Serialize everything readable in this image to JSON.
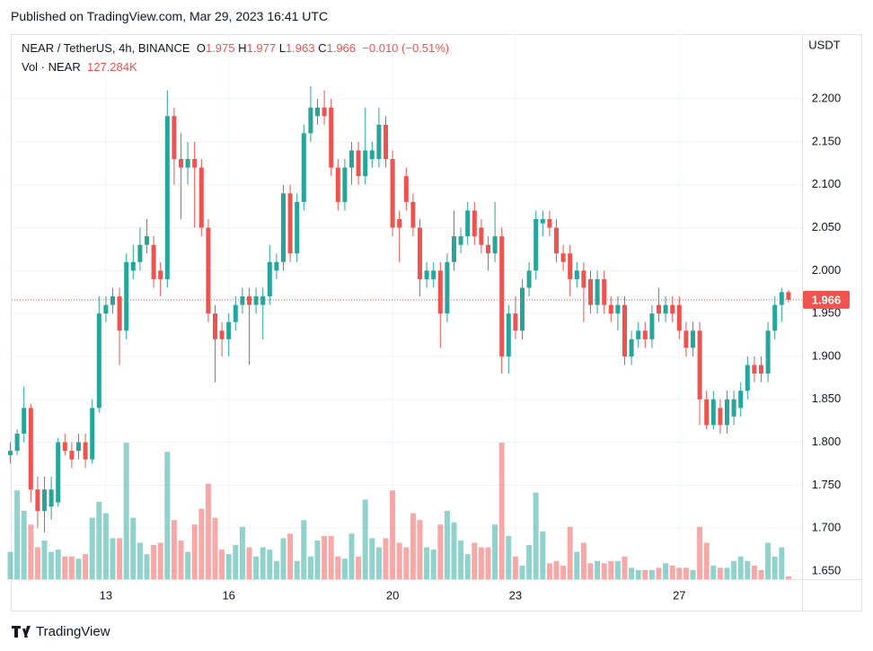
{
  "chart_data": {
    "type": "candlestick",
    "published": "Published on TradingView.com, Mar 29, 2023 16:41 UTC",
    "symbol": "NEAR / TetherUS, 4h, BINANCE",
    "ohlc": {
      "o_label": "O",
      "open": 1.975,
      "h_label": "H",
      "high": 1.977,
      "l_label": "L",
      "low": 1.963,
      "c_label": "C",
      "close": 1.966,
      "change": {
        "value": -0.01,
        "label": "−0.010 (−0.51%)"
      }
    },
    "volume_label": "Vol · NEAR",
    "volume_value": {
      "value": 127.284,
      "label": "127.284K"
    },
    "currency": "USDT",
    "brand": "TradingView",
    "up_color": "#26a69a",
    "down_color": "#ef5350",
    "grid": true,
    "ylim": [
      1.6405,
      2.2755
    ],
    "yticks": [
      {
        "value": 1.65,
        "label": "1.650"
      },
      {
        "value": 1.7,
        "label": "1.700"
      },
      {
        "value": 1.75,
        "label": "1.750"
      },
      {
        "value": 1.8,
        "label": "1.800"
      },
      {
        "value": 1.85,
        "label": "1.850"
      },
      {
        "value": 1.9,
        "label": "1.900"
      },
      {
        "value": 1.95,
        "label": "1.950"
      },
      {
        "value": 2.0,
        "label": "2.000"
      },
      {
        "value": 2.05,
        "label": "2.050"
      },
      {
        "value": 2.1,
        "label": "2.100"
      },
      {
        "value": 2.15,
        "label": "2.150"
      },
      {
        "value": 2.2,
        "label": "2.200"
      }
    ],
    "xticks": [
      {
        "value": 14,
        "label": "13"
      },
      {
        "value": 32,
        "label": "16"
      },
      {
        "value": 56,
        "label": "20"
      },
      {
        "value": 74,
        "label": "23"
      },
      {
        "value": 98,
        "label": "27"
      }
    ],
    "candles": [
      [
        1.785,
        1.8,
        1.775,
        1.79
      ],
      [
        1.79,
        1.815,
        1.785,
        1.81
      ],
      [
        1.81,
        1.865,
        1.8,
        1.84
      ],
      [
        1.84,
        1.845,
        1.73,
        1.745
      ],
      [
        1.745,
        1.76,
        1.7,
        1.72
      ],
      [
        1.72,
        1.76,
        1.695,
        1.745
      ],
      [
        1.725,
        1.76,
        1.71,
        1.745
      ],
      [
        1.73,
        1.805,
        1.725,
        1.8
      ],
      [
        1.8,
        1.81,
        1.785,
        1.79
      ],
      [
        1.79,
        1.8,
        1.77,
        1.78
      ],
      [
        1.79,
        1.81,
        1.78,
        1.8
      ],
      [
        1.8,
        1.81,
        1.77,
        1.78
      ],
      [
        1.78,
        1.85,
        1.775,
        1.84
      ],
      [
        1.84,
        1.97,
        1.835,
        1.95
      ],
      [
        1.95,
        1.97,
        1.94,
        1.96
      ],
      [
        1.96,
        1.98,
        1.95,
        1.97
      ],
      [
        1.97,
        1.98,
        1.89,
        1.93
      ],
      [
        1.93,
        2.02,
        1.92,
        2.01
      ],
      [
        2.0,
        2.03,
        1.99,
        2.01
      ],
      [
        2.01,
        2.05,
        2.0,
        2.03
      ],
      [
        2.03,
        2.06,
        2.02,
        2.04
      ],
      [
        2.03,
        2.04,
        1.98,
        1.99
      ],
      [
        2.0,
        2.01,
        1.97,
        1.99
      ],
      [
        1.99,
        2.21,
        1.98,
        2.18
      ],
      [
        2.18,
        2.19,
        2.1,
        2.13
      ],
      [
        2.13,
        2.16,
        2.06,
        2.12
      ],
      [
        2.12,
        2.15,
        2.1,
        2.13
      ],
      [
        2.13,
        2.15,
        2.05,
        2.12
      ],
      [
        2.12,
        2.13,
        2.04,
        2.05
      ],
      [
        2.05,
        2.06,
        1.94,
        1.95
      ],
      [
        1.95,
        1.96,
        1.87,
        1.92
      ],
      [
        1.93,
        1.94,
        1.9,
        1.92
      ],
      [
        1.92,
        1.95,
        1.9,
        1.94
      ],
      [
        1.94,
        1.97,
        1.93,
        1.96
      ],
      [
        1.96,
        1.98,
        1.95,
        1.97
      ],
      [
        1.97,
        1.98,
        1.89,
        1.96
      ],
      [
        1.96,
        1.98,
        1.95,
        1.97
      ],
      [
        1.96,
        1.98,
        1.92,
        1.97
      ],
      [
        1.97,
        2.03,
        1.96,
        2.01
      ],
      [
        2.0,
        2.02,
        1.99,
        2.01
      ],
      [
        2.01,
        2.1,
        2.0,
        2.09
      ],
      [
        2.09,
        2.1,
        2.01,
        2.02
      ],
      [
        2.02,
        2.09,
        2.01,
        2.08
      ],
      [
        2.08,
        2.17,
        2.07,
        2.16
      ],
      [
        2.16,
        2.215,
        2.15,
        2.19
      ],
      [
        2.18,
        2.2,
        2.17,
        2.19
      ],
      [
        2.19,
        2.21,
        2.17,
        2.18
      ],
      [
        2.19,
        2.2,
        2.11,
        2.12
      ],
      [
        2.12,
        2.13,
        2.07,
        2.08
      ],
      [
        2.08,
        2.13,
        2.07,
        2.12
      ],
      [
        2.12,
        2.15,
        2.1,
        2.14
      ],
      [
        2.14,
        2.15,
        2.1,
        2.11
      ],
      [
        2.11,
        2.19,
        2.1,
        2.14
      ],
      [
        2.13,
        2.15,
        2.12,
        2.14
      ],
      [
        2.13,
        2.19,
        2.12,
        2.17
      ],
      [
        2.17,
        2.18,
        2.12,
        2.13
      ],
      [
        2.13,
        2.14,
        2.04,
        2.05
      ],
      [
        2.06,
        2.07,
        2.01,
        2.05
      ],
      [
        2.11,
        2.12,
        2.07,
        2.08
      ],
      [
        2.08,
        2.09,
        2.04,
        2.05
      ],
      [
        2.05,
        2.06,
        1.97,
        1.99
      ],
      [
        1.99,
        2.01,
        1.98,
        2.0
      ],
      [
        1.99,
        2.01,
        1.98,
        2.0
      ],
      [
        2.0,
        2.01,
        1.91,
        1.95
      ],
      [
        1.95,
        2.02,
        1.94,
        2.01
      ],
      [
        2.01,
        2.07,
        2.0,
        2.04
      ],
      [
        2.03,
        2.05,
        2.02,
        2.04
      ],
      [
        2.04,
        2.08,
        2.03,
        2.07
      ],
      [
        2.07,
        2.08,
        2.03,
        2.04
      ],
      [
        2.05,
        2.06,
        2.02,
        2.03
      ],
      [
        2.03,
        2.04,
        2.0,
        2.02
      ],
      [
        2.02,
        2.08,
        2.01,
        2.04
      ],
      [
        2.04,
        2.05,
        1.88,
        1.9
      ],
      [
        1.9,
        1.96,
        1.88,
        1.95
      ],
      [
        1.95,
        1.97,
        1.92,
        1.93
      ],
      [
        1.93,
        1.99,
        1.92,
        1.98
      ],
      [
        1.98,
        2.01,
        1.97,
        2.0
      ],
      [
        2.0,
        2.07,
        1.99,
        2.06
      ],
      [
        2.055,
        2.07,
        2.04,
        2.06
      ],
      [
        2.06,
        2.07,
        2.04,
        2.05
      ],
      [
        2.05,
        2.06,
        2.01,
        2.02
      ],
      [
        2.02,
        2.03,
        2.0,
        2.01
      ],
      [
        2.02,
        2.03,
        1.97,
        1.99
      ],
      [
        1.99,
        2.01,
        1.98,
        2.0
      ],
      [
        2.0,
        2.01,
        1.94,
        1.98
      ],
      [
        1.99,
        2.0,
        1.95,
        1.96
      ],
      [
        1.96,
        2.0,
        1.95,
        1.99
      ],
      [
        1.99,
        2.0,
        1.95,
        1.96
      ],
      [
        1.96,
        1.97,
        1.94,
        1.95
      ],
      [
        1.95,
        1.97,
        1.93,
        1.96
      ],
      [
        1.96,
        1.97,
        1.89,
        1.9
      ],
      [
        1.9,
        1.93,
        1.89,
        1.92
      ],
      [
        1.92,
        1.94,
        1.91,
        1.93
      ],
      [
        1.93,
        1.94,
        1.91,
        1.92
      ],
      [
        1.92,
        1.96,
        1.91,
        1.95
      ],
      [
        1.96,
        1.98,
        1.94,
        1.95
      ],
      [
        1.95,
        1.97,
        1.94,
        1.96
      ],
      [
        1.96,
        1.97,
        1.94,
        1.95
      ],
      [
        1.96,
        1.97,
        1.92,
        1.93
      ],
      [
        1.93,
        1.94,
        1.9,
        1.91
      ],
      [
        1.91,
        1.94,
        1.9,
        1.93
      ],
      [
        1.93,
        1.94,
        1.82,
        1.85
      ],
      [
        1.85,
        1.86,
        1.815,
        1.82
      ],
      [
        1.82,
        1.86,
        1.815,
        1.85
      ],
      [
        1.84,
        1.85,
        1.81,
        1.82
      ],
      [
        1.82,
        1.86,
        1.81,
        1.85
      ],
      [
        1.83,
        1.86,
        1.82,
        1.85
      ],
      [
        1.84,
        1.87,
        1.83,
        1.86
      ],
      [
        1.86,
        1.9,
        1.85,
        1.89
      ],
      [
        1.89,
        1.9,
        1.87,
        1.88
      ],
      [
        1.89,
        1.9,
        1.87,
        1.88
      ],
      [
        1.88,
        1.94,
        1.87,
        1.93
      ],
      [
        1.93,
        1.97,
        1.92,
        1.96
      ],
      [
        1.96,
        1.98,
        1.94,
        1.975
      ],
      [
        1.975,
        1.977,
        1.963,
        1.966
      ]
    ],
    "volumes": [
      1200,
      3900,
      3000,
      2400,
      1400,
      1700,
      1200,
      1300,
      1000,
      1000,
      900,
      1100,
      2700,
      3400,
      2900,
      1800,
      1800,
      6000,
      2700,
      1600,
      1100,
      1500,
      1600,
      5600,
      2600,
      1700,
      1200,
      2400,
      3100,
      4200,
      2700,
      1300,
      1100,
      1500,
      2300,
      1400,
      1000,
      1400,
      1300,
      800,
      1800,
      2000,
      800,
      2600,
      1000,
      1700,
      1900,
      1900,
      1000,
      900,
      2000,
      1000,
      3500,
      1800,
      1400,
      1800,
      3900,
      1600,
      1400,
      2900,
      2600,
      1400,
      1300,
      2400,
      3000,
      2500,
      1700,
      1100,
      1600,
      1400,
      1400,
      2400,
      6000,
      1900,
      1000,
      600,
      1500,
      3800,
      2100,
      700,
      800,
      600,
      2300,
      1200,
      1600,
      700,
      800,
      700,
      800,
      800,
      1000,
      500,
      400,
      400,
      400,
      500,
      700,
      600,
      500,
      500,
      400,
      2300,
      1600,
      600,
      500,
      500,
      800,
      1000,
      800,
      600,
      400,
      1600,
      1000,
      1400,
      127.284
    ]
  }
}
